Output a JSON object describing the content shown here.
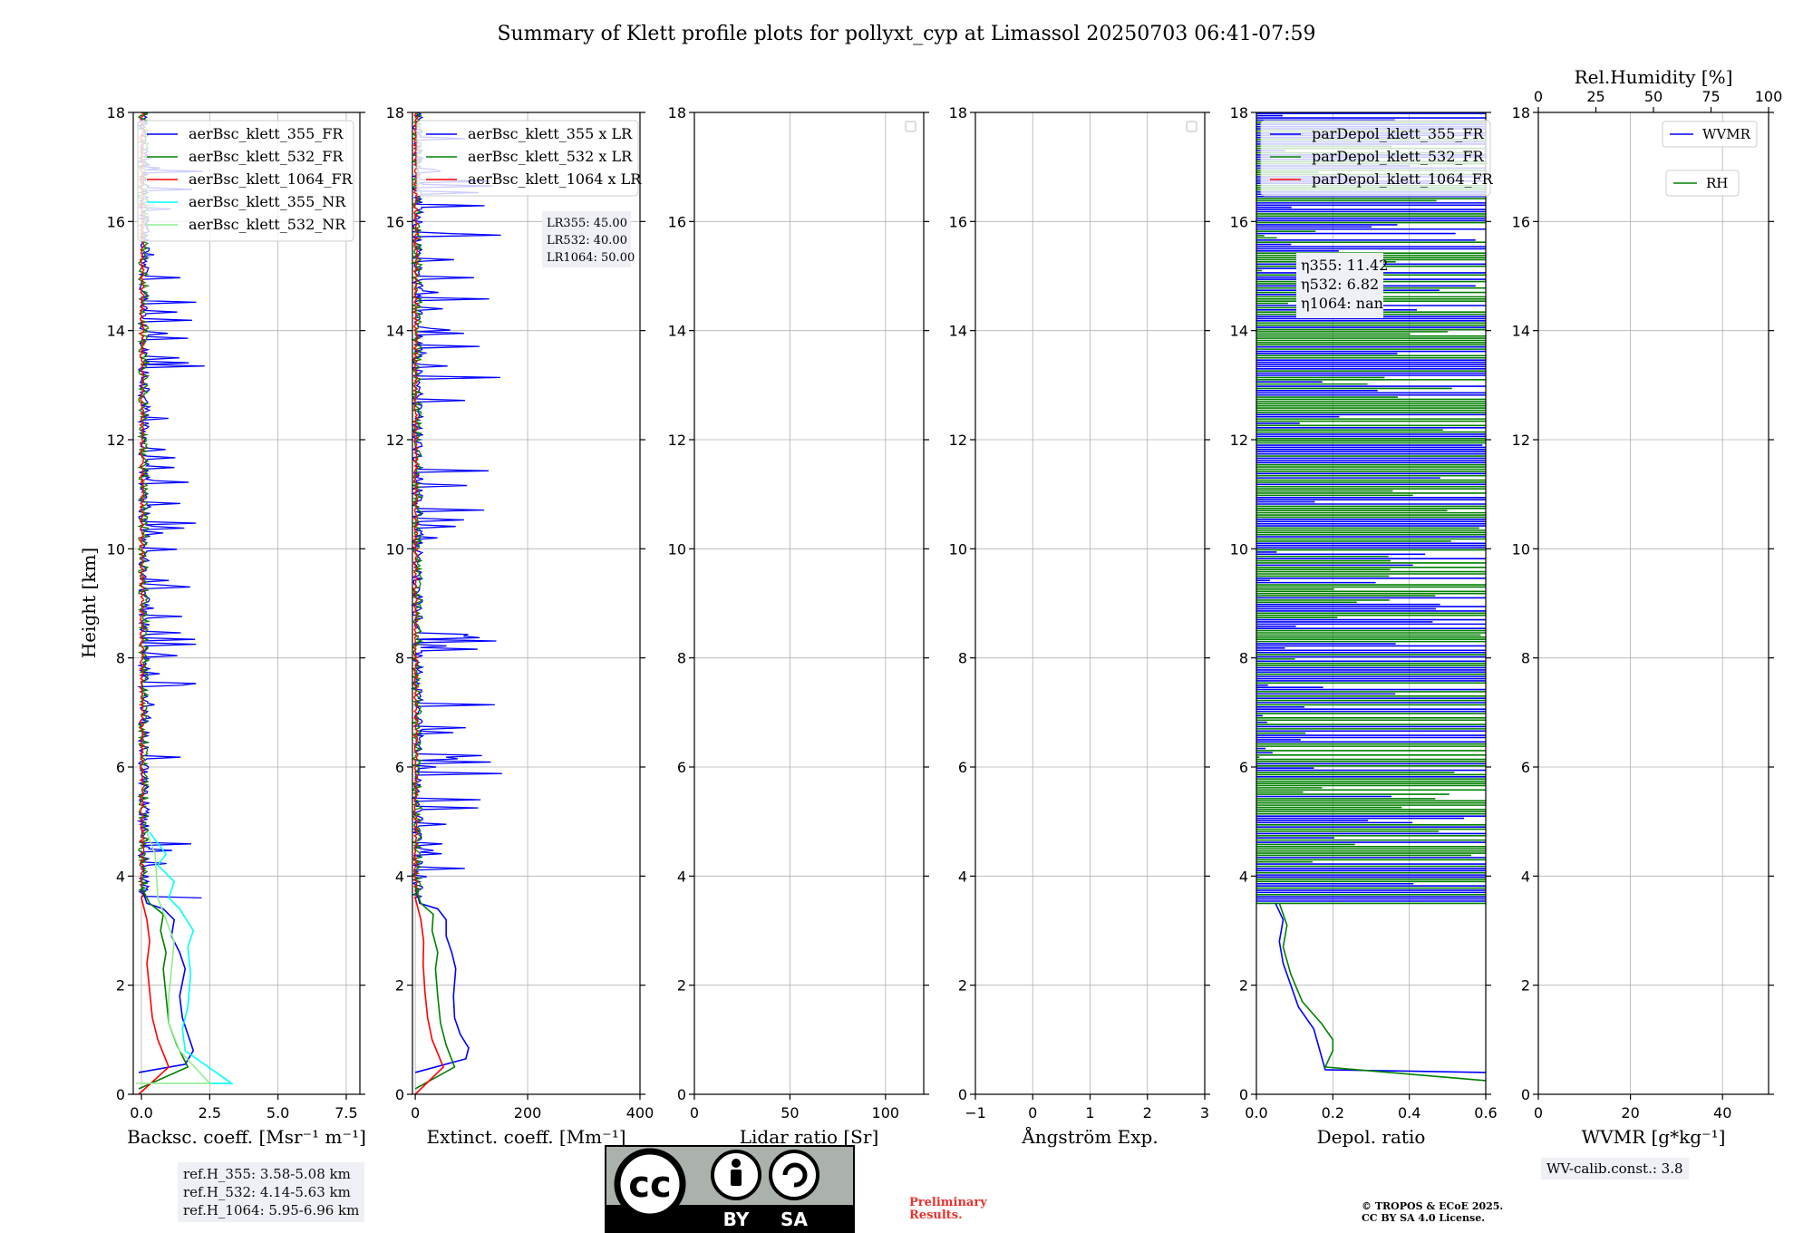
{
  "title": "Summary of Klett profile plots for pollyxt_cyp at Limassol 20250703 06:41-07:59",
  "ylabel": "Height [km]",
  "ref_heights": [
    "ref.H_355: 3.58-5.08 km",
    "ref.H_532: 4.14-5.63 km",
    "ref.H_1064: 5.95-6.96 km"
  ],
  "lr_values": {
    "lr355": "LR355: 45.00",
    "lr532": "LR532: 40.00",
    "lr1064": "LR1064: 50.00"
  },
  "eta_values": {
    "eta355": "η355: 11.42",
    "eta532": "η532: 6.82",
    "eta1064": "η1064: nan"
  },
  "license": {
    "cc": "cc",
    "by": "BY",
    "sa": "SA"
  },
  "preliminary": [
    "Preliminary",
    "Results."
  ],
  "copyright": [
    "© TROPOS & ECoE 2025.",
    "CC BY SA 4.0 License."
  ],
  "wv_calib": "WV-calib.const.: 3.8",
  "colors": {
    "c355": "#0000ff",
    "c532": "#008000",
    "c1064": "#ff0000",
    "c355nr": "#00ffff",
    "c532nr": "#90ee90"
  },
  "chart_data": [
    {
      "type": "line",
      "id": "backscatter",
      "xlabel": "Backsc. coeff. [Msr⁻¹ m⁻¹]",
      "xlim": [
        -0.3,
        8.0
      ],
      "ylim": [
        0,
        18
      ],
      "xticks": [
        0.0,
        2.5,
        5.0,
        7.5
      ],
      "xtick_labels": [
        "0.0",
        "2.5",
        "5.0",
        "7.5"
      ],
      "yticks": [
        0,
        2,
        4,
        6,
        8,
        10,
        12,
        14,
        16,
        18
      ],
      "legend": [
        "aerBsc_klett_355_FR",
        "aerBsc_klett_532_FR",
        "aerBsc_klett_1064_FR",
        "aerBsc_klett_355_NR",
        "aerBsc_klett_532_NR"
      ],
      "series": [
        {
          "name": "aerBsc_klett_355_FR",
          "color": "#0000ff",
          "points": [
            [
              -0.1,
              0.4
            ],
            [
              1.6,
              0.55
            ],
            [
              1.9,
              0.8
            ],
            [
              1.7,
              1.1
            ],
            [
              1.5,
              1.4
            ],
            [
              1.4,
              1.8
            ],
            [
              1.6,
              2.3
            ],
            [
              1.4,
              2.6
            ],
            [
              1.1,
              2.9
            ],
            [
              1.2,
              3.2
            ],
            [
              0.8,
              3.4
            ],
            [
              0.2,
              3.5
            ],
            [
              0.0,
              3.8
            ]
          ]
        },
        {
          "name": "aerBsc_klett_532_FR",
          "color": "#008000",
          "points": [
            [
              -0.1,
              0.1
            ],
            [
              1.7,
              0.5
            ],
            [
              1.3,
              0.9
            ],
            [
              1.0,
              1.3
            ],
            [
              0.9,
              1.8
            ],
            [
              0.8,
              2.3
            ],
            [
              0.9,
              2.6
            ],
            [
              0.7,
              3.0
            ],
            [
              0.8,
              3.3
            ],
            [
              0.3,
              3.5
            ],
            [
              0.0,
              3.8
            ]
          ]
        },
        {
          "name": "aerBsc_klett_1064_FR",
          "color": "#ff0000",
          "points": [
            [
              -0.1,
              0.0
            ],
            [
              1.0,
              0.5
            ],
            [
              0.6,
              1.0
            ],
            [
              0.4,
              1.4
            ],
            [
              0.3,
              1.9
            ],
            [
              0.2,
              2.4
            ],
            [
              0.3,
              2.8
            ],
            [
              0.2,
              3.2
            ],
            [
              0.0,
              3.6
            ]
          ]
        },
        {
          "name": "aerBsc_klett_355_NR",
          "color": "#00ffff",
          "points": [
            [
              2.5,
              0.2
            ],
            [
              3.3,
              0.2
            ],
            [
              1.6,
              0.8
            ],
            [
              1.5,
              1.2
            ],
            [
              1.7,
              1.6
            ],
            [
              1.8,
              2.2
            ],
            [
              1.7,
              2.7
            ],
            [
              1.9,
              3.0
            ],
            [
              1.4,
              3.4
            ],
            [
              1.0,
              3.6
            ],
            [
              1.2,
              3.9
            ],
            [
              0.6,
              4.2
            ],
            [
              0.9,
              4.4
            ],
            [
              0.3,
              4.8
            ]
          ]
        },
        {
          "name": "aerBsc_klett_532_NR",
          "color": "#90ee90",
          "points": [
            [
              -0.2,
              0.2
            ],
            [
              2.5,
              0.2
            ],
            [
              1.4,
              0.8
            ],
            [
              1.0,
              1.3
            ],
            [
              1.0,
              1.8
            ],
            [
              1.1,
              2.3
            ],
            [
              1.2,
              2.8
            ],
            [
              0.9,
              3.2
            ],
            [
              0.6,
              3.6
            ],
            [
              0.5,
              4.4
            ],
            [
              0.2,
              4.8
            ]
          ]
        }
      ]
    },
    {
      "type": "line",
      "id": "extinction",
      "xlabel": "Extinct. coeff. [Mm⁻¹]",
      "xlim": [
        -5,
        400
      ],
      "ylim": [
        0,
        18
      ],
      "xticks": [
        0,
        200,
        400
      ],
      "xtick_labels": [
        "0",
        "200",
        "400"
      ],
      "yticks": [
        0,
        2,
        4,
        6,
        8,
        10,
        12,
        14,
        16,
        18
      ],
      "legend": [
        "aerBsc_klett_355 x LR",
        "aerBsc_klett_532 x LR",
        "aerBsc_klett_1064 x LR"
      ],
      "series": [
        {
          "name": "aerBsc_klett_355 x LR",
          "color": "#0000ff",
          "points": [
            [
              0,
              0.4
            ],
            [
              90,
              0.65
            ],
            [
              95,
              0.85
            ],
            [
              80,
              1.1
            ],
            [
              70,
              1.4
            ],
            [
              68,
              1.8
            ],
            [
              72,
              2.3
            ],
            [
              65,
              2.6
            ],
            [
              55,
              2.9
            ],
            [
              55,
              3.2
            ],
            [
              40,
              3.4
            ],
            [
              8,
              3.5
            ],
            [
              0,
              3.8
            ]
          ]
        },
        {
          "name": "aerBsc_klett_532 x LR",
          "color": "#008000",
          "points": [
            [
              0,
              0.1
            ],
            [
              70,
              0.5
            ],
            [
              55,
              0.9
            ],
            [
              45,
              1.3
            ],
            [
              40,
              1.8
            ],
            [
              36,
              2.3
            ],
            [
              40,
              2.6
            ],
            [
              30,
              3.0
            ],
            [
              32,
              3.3
            ],
            [
              10,
              3.5
            ],
            [
              0,
              3.8
            ]
          ]
        },
        {
          "name": "aerBsc_klett_1064 x LR",
          "color": "#ff0000",
          "points": [
            [
              0,
              0.0
            ],
            [
              50,
              0.5
            ],
            [
              30,
              1.0
            ],
            [
              22,
              1.4
            ],
            [
              17,
              1.9
            ],
            [
              14,
              2.4
            ],
            [
              15,
              2.8
            ],
            [
              10,
              3.2
            ],
            [
              0,
              3.6
            ]
          ]
        }
      ]
    },
    {
      "type": "line",
      "id": "lidar_ratio",
      "xlabel": "Lidar ratio [Sr]",
      "xlim": [
        0,
        120
      ],
      "ylim": [
        0,
        18
      ],
      "xticks": [
        0,
        50,
        100
      ],
      "xtick_labels": [
        "0",
        "50",
        "100"
      ],
      "yticks": [
        0,
        2,
        4,
        6,
        8,
        10,
        12,
        14,
        16,
        18
      ],
      "series": []
    },
    {
      "type": "line",
      "id": "angstrom",
      "xlabel": "Ångström Exp.",
      "xlim": [
        -1,
        3
      ],
      "ylim": [
        0,
        18
      ],
      "xticks": [
        -1,
        0,
        1,
        2,
        3
      ],
      "xtick_labels": [
        "−1",
        "0",
        "1",
        "2",
        "3"
      ],
      "yticks": [
        0,
        2,
        4,
        6,
        8,
        10,
        12,
        14,
        16,
        18
      ],
      "series": []
    },
    {
      "type": "line",
      "id": "depol",
      "xlabel": "Depol. ratio",
      "xlim": [
        0,
        0.6
      ],
      "ylim": [
        0,
        18
      ],
      "xticks": [
        0.0,
        0.2,
        0.4,
        0.6
      ],
      "xtick_labels": [
        "0.0",
        "0.2",
        "0.4",
        "0.6"
      ],
      "yticks": [
        0,
        2,
        4,
        6,
        8,
        10,
        12,
        14,
        16,
        18
      ],
      "legend": [
        "parDepol_klett_355_FR",
        "parDepol_klett_532_FR",
        "parDepol_klett_1064_FR"
      ],
      "series": [
        {
          "name": "parDepol_klett_355_FR",
          "color": "#0000ff",
          "points": [
            [
              0.6,
              0.4
            ],
            [
              0.18,
              0.45
            ],
            [
              0.17,
              0.7
            ],
            [
              0.15,
              1.2
            ],
            [
              0.11,
              1.6
            ],
            [
              0.09,
              2.0
            ],
            [
              0.07,
              2.4
            ],
            [
              0.06,
              2.8
            ],
            [
              0.07,
              3.2
            ],
            [
              0.05,
              3.5
            ]
          ]
        },
        {
          "name": "parDepol_klett_532_FR",
          "color": "#008000",
          "points": [
            [
              0.6,
              0.25
            ],
            [
              0.18,
              0.5
            ],
            [
              0.2,
              0.8
            ],
            [
              0.2,
              1.0
            ],
            [
              0.17,
              1.3
            ],
            [
              0.12,
              1.7
            ],
            [
              0.09,
              2.2
            ],
            [
              0.07,
              2.7
            ],
            [
              0.08,
              3.1
            ],
            [
              0.06,
              3.5
            ]
          ]
        },
        {
          "name": "parDepol_klett_1064_FR",
          "color": "#ff0000",
          "points": []
        }
      ]
    },
    {
      "type": "line",
      "id": "wvmr",
      "xlabel": "WVMR [g*kg⁻¹]",
      "xlim": [
        0,
        50
      ],
      "ylim": [
        0,
        18
      ],
      "xticks": [
        0,
        20,
        40
      ],
      "xtick_labels": [
        "0",
        "20",
        "40"
      ],
      "yticks": [
        0,
        2,
        4,
        6,
        8,
        10,
        12,
        14,
        16,
        18
      ],
      "top_xlabel": "Rel.Humidity [%]",
      "top_xticks": [
        0,
        25,
        50,
        75,
        100
      ],
      "top_xtick_labels": [
        "0",
        "25",
        "50",
        "75",
        "100"
      ],
      "legend": [
        "WVMR",
        "RH"
      ],
      "series": []
    }
  ]
}
